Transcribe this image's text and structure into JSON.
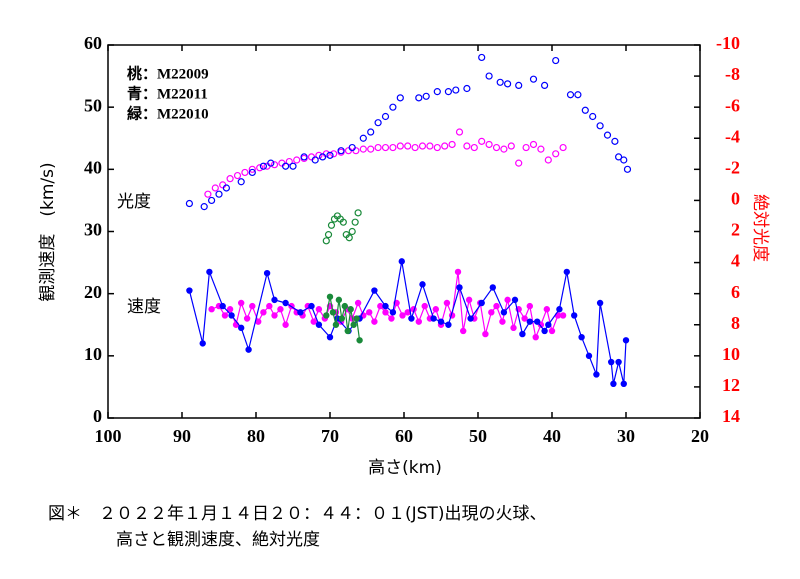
{
  "chart_data": {
    "type": "scatter",
    "xlabel": "高さ(km)",
    "ylabel": "観測速度　(km/s)",
    "y2label": "絶対光度",
    "caption": [
      "図＊　２０２２年１月１４日２０：４４：０１(JST)出現の火球、",
      "高さと観測速度、絶対光度"
    ],
    "legend_text": [
      "桃：M22009",
      "青：M22011",
      "緑：M22010"
    ],
    "annotations": [
      "光度",
      "速度"
    ],
    "xlim": [
      100,
      20
    ],
    "xticks": [
      100,
      90,
      80,
      70,
      60,
      50,
      40,
      30,
      20
    ],
    "ylim": [
      0,
      60
    ],
    "yticks": [
      0,
      10,
      20,
      30,
      40,
      50,
      60
    ],
    "y2lim": [
      14,
      -10
    ],
    "y2ticks": [
      -10,
      -8,
      -6,
      -4,
      -2,
      0,
      2,
      4,
      6,
      8,
      10,
      12,
      14
    ],
    "y2color": "#ff0000",
    "series": [
      {
        "color": "#ff00ff",
        "line": true,
        "marker": "filled",
        "x": [
          86,
          85,
          84.2,
          83.5,
          82.7,
          82,
          81.2,
          80.5,
          79.7,
          79,
          78.2,
          77.5,
          76.7,
          76,
          75.2,
          74.5,
          73.7,
          73,
          72.2,
          71.5,
          70.7,
          70,
          69.2,
          68.5,
          67.7,
          67,
          66.2,
          65.5,
          64.7,
          64,
          63.2,
          62.5,
          61.7,
          61,
          60.2,
          59.5,
          58.7,
          58,
          57.2,
          56.5,
          55.7,
          55,
          54.2,
          53.5,
          52.7,
          52,
          51.2,
          50.5,
          49.7,
          49,
          48.2,
          47.5,
          46.7,
          46,
          45.2,
          44.5,
          43.7,
          43,
          42.2,
          41.5,
          40.7,
          40,
          39.2,
          38.5
        ],
        "values": [
          17.5,
          18,
          16.5,
          17.5,
          15,
          18.5,
          16,
          18,
          15.5,
          17,
          18,
          16.5,
          17.5,
          15,
          18,
          17,
          16.5,
          18,
          15.5,
          17.5,
          16,
          18,
          17,
          15.5,
          17.5,
          16,
          18.5,
          16.5,
          17,
          15.5,
          18,
          17,
          16,
          18.5,
          16.5,
          17,
          17.5,
          15.5,
          18,
          16,
          17.5,
          15,
          18.5,
          16.5,
          23.5,
          14,
          19,
          16,
          18.5,
          13.5,
          17,
          18,
          15.5,
          19,
          14.5,
          17.5,
          16,
          18,
          13,
          15,
          17.5,
          14,
          16.5,
          16.5
        ]
      },
      {
        "color": "#0000ff",
        "line": true,
        "marker": "filled",
        "x": [
          89,
          87.2,
          86.3,
          84.5,
          83.3,
          82,
          81,
          78.5,
          77.5,
          76,
          74,
          72.5,
          71.5,
          70,
          69,
          67.5,
          66,
          64,
          62.5,
          61.5,
          60.3,
          59,
          57.5,
          56,
          55,
          54,
          52.5,
          51,
          49.5,
          48,
          46.5,
          45,
          44,
          43,
          42,
          41,
          40.5,
          39,
          38,
          37,
          36,
          35,
          34,
          33.5,
          32,
          31.7,
          31,
          30.3,
          30
        ],
        "values": [
          20.5,
          12,
          23.5,
          18,
          16.5,
          14.5,
          11,
          23.3,
          19,
          18.5,
          17,
          18,
          15,
          13,
          16,
          14,
          16,
          20.5,
          18,
          17,
          25.2,
          16,
          21.5,
          16,
          15.5,
          15,
          21,
          16,
          18.5,
          21,
          17,
          19,
          13.5,
          15.5,
          15.5,
          14,
          15,
          17.5,
          23.5,
          16.5,
          13,
          10,
          7,
          18.5,
          9,
          5.5,
          9,
          5.5,
          12.5
        ]
      },
      {
        "color": "#1a8a3a",
        "line": true,
        "marker": "filled",
        "x": [
          70.5,
          70,
          69.6,
          69.2,
          68.8,
          68.4,
          68,
          67.6,
          67.2,
          66.8,
          66.4,
          66
        ],
        "values": [
          16.5,
          19.5,
          17,
          15,
          19,
          16,
          18,
          14,
          17.5,
          15,
          16,
          12.5
        ]
      },
      {
        "color": "#ff00ff",
        "line": false,
        "marker": "open",
        "axis": "y2",
        "x": [
          86.5,
          85.5,
          84.5,
          83.5,
          82.5,
          81.5,
          80.5,
          79.5,
          78.5,
          77.5,
          76.5,
          75.5,
          74.5,
          73.5,
          72.5,
          71.5,
          70.5,
          69.5,
          68.5,
          67.5,
          66.5,
          65.5,
          64.5,
          63.5,
          62.5,
          61.5,
          60.5,
          59.5,
          58.5,
          57.5,
          56.5,
          55.5,
          54.5,
          53.5,
          52.5,
          51.5,
          50.5,
          49.5,
          48.5,
          47.5,
          46.5,
          45.5,
          44.5,
          43.5,
          42.5,
          41.5,
          40.5,
          39.5,
          38.5
        ],
        "values": [
          -0.4,
          -0.8,
          -1,
          -1.4,
          -1.6,
          -1.8,
          -2,
          -2.1,
          -2.2,
          -2.3,
          -2.4,
          -2.5,
          -2.6,
          -2.7,
          -2.8,
          -2.9,
          -3,
          -3,
          -3.1,
          -3.2,
          -3.2,
          -3.3,
          -3.3,
          -3.4,
          -3.4,
          -3.4,
          -3.5,
          -3.5,
          -3.4,
          -3.5,
          -3.5,
          -3.4,
          -3.5,
          -3.6,
          -4.4,
          -3.5,
          -3.4,
          -3.8,
          -3.6,
          -3.4,
          -3.3,
          -3.5,
          -2.4,
          -3.4,
          -3.6,
          -3.3,
          -2.6,
          -3,
          -3.4
        ]
      },
      {
        "color": "#0000ff",
        "line": false,
        "marker": "open",
        "axis": "y2",
        "x": [
          89,
          87,
          86,
          85,
          84,
          82,
          80.5,
          79,
          78,
          76,
          75,
          73.5,
          72,
          71,
          70,
          68.5,
          67,
          65.5,
          64.5,
          63.5,
          62.5,
          61.5,
          60.5,
          58,
          57,
          55.5,
          54,
          53,
          51.5,
          49.5,
          48.5,
          47,
          46,
          44.5,
          42.5,
          41,
          39.5,
          37.5,
          36.5,
          35.5,
          34.5,
          33.5,
          32.5,
          31.5,
          31,
          30.3,
          29.8
        ],
        "values": [
          0.2,
          0.4,
          0,
          -0.4,
          -0.8,
          -1.2,
          -1.8,
          -2.2,
          -2.4,
          -2.2,
          -2.2,
          -2.8,
          -2.6,
          -2.8,
          -2.9,
          -3.2,
          -3.4,
          -4,
          -4.4,
          -5,
          -5.4,
          -6,
          -6.6,
          -6.6,
          -6.7,
          -7,
          -7,
          -7.1,
          -7.2,
          -9.2,
          -8,
          -7.6,
          -7.5,
          -7.4,
          -7.8,
          -7.4,
          -9,
          -6.8,
          -6.8,
          -5.8,
          -5.4,
          -4.8,
          -4.2,
          -3.8,
          -2.8,
          -2.6,
          -2
        ]
      },
      {
        "color": "#1a8a3a",
        "line": false,
        "marker": "open",
        "axis": "y2",
        "x": [
          70.5,
          70.2,
          69.8,
          69.4,
          69,
          68.6,
          68.2,
          67.8,
          67.4,
          67,
          66.6,
          66.2
        ],
        "values": [
          2.6,
          2.2,
          1.6,
          1.2,
          1,
          1.2,
          1.4,
          2.2,
          2.4,
          2,
          1.4,
          0.8
        ]
      }
    ]
  }
}
